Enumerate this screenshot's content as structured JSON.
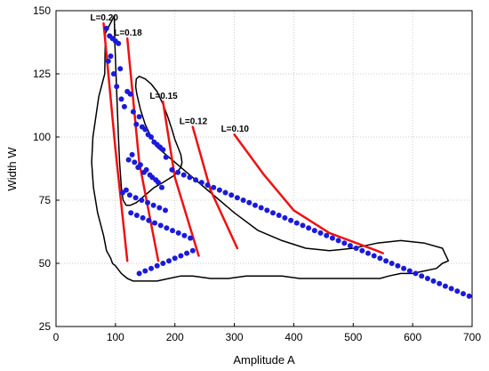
{
  "chart_data": {
    "type": "scatter",
    "title": "",
    "xlabel": "Amplitude A",
    "ylabel": "Width W",
    "xlim": [
      0,
      700
    ],
    "ylim": [
      25,
      150
    ],
    "xticks": [
      0,
      100,
      200,
      300,
      400,
      500,
      600,
      700
    ],
    "yticks": [
      25,
      50,
      75,
      100,
      125,
      150
    ],
    "grid": true,
    "point_color": "#1a1adb",
    "curve_color": "#ee1111",
    "outline_color": "#000000",
    "points": {
      "x": [
        85,
        90,
        95,
        100,
        105,
        108,
        88,
        92,
        97,
        102,
        110,
        115,
        120,
        125,
        130,
        135,
        140,
        145,
        150,
        155,
        160,
        165,
        170,
        175,
        180,
        185,
        122,
        128,
        132,
        138,
        142,
        148,
        152,
        158,
        162,
        168,
        172,
        178,
        118,
        112,
        124,
        134,
        144,
        154,
        164,
        174,
        184,
        126,
        136,
        146,
        156,
        166,
        176,
        186,
        196,
        206,
        216,
        226,
        195,
        205,
        215,
        225,
        235,
        245,
        255,
        265,
        275,
        285,
        295,
        305,
        315,
        325,
        335,
        345,
        355,
        365,
        375,
        385,
        395,
        405,
        415,
        425,
        435,
        445,
        455,
        465,
        475,
        485,
        495,
        505,
        515,
        525,
        535,
        545,
        555,
        565,
        575,
        585,
        595,
        605,
        615,
        625,
        635,
        645,
        655,
        665,
        675,
        685,
        695,
        140,
        150,
        160,
        170,
        180,
        190,
        200,
        210,
        220,
        230
      ],
      "y": [
        143,
        140,
        139,
        138,
        137,
        127,
        130,
        132,
        125,
        120,
        115,
        112,
        118,
        117,
        110,
        105,
        108,
        104,
        103,
        101,
        100,
        98,
        97,
        96,
        95,
        92,
        91,
        93,
        90,
        88,
        89,
        86,
        87,
        85,
        84,
        83,
        82,
        80,
        79,
        78,
        77,
        76,
        75,
        74,
        73,
        72,
        71,
        70,
        69,
        68,
        67,
        66,
        65,
        64,
        63,
        62,
        61,
        60,
        87,
        86,
        85,
        84,
        83,
        82,
        81,
        80,
        79,
        78,
        77,
        76,
        75,
        74,
        73,
        72,
        71,
        70,
        69,
        68,
        67,
        66,
        65,
        64,
        63,
        62,
        61,
        60,
        59,
        58,
        57,
        56,
        55,
        54,
        53,
        52,
        51,
        50,
        49,
        48,
        47,
        46,
        45,
        44,
        43,
        42,
        41,
        40,
        39,
        38,
        37,
        46,
        47,
        48,
        49,
        50,
        51,
        52,
        53,
        54,
        55
      ]
    },
    "curves": [
      {
        "label": "L=0.20",
        "x": [
          80,
          100,
          120
        ],
        "y": [
          145,
          95,
          51
        ]
      },
      {
        "label": "L=0.18",
        "x": [
          120,
          140,
          172
        ],
        "y": [
          139,
          90,
          51
        ]
      },
      {
        "label": "L=0.15",
        "x": [
          180,
          200,
          240
        ],
        "y": [
          114,
          84,
          53
        ]
      },
      {
        "label": "L=0.12",
        "x": [
          230,
          260,
          305
        ],
        "y": [
          104,
          79,
          56
        ]
      },
      {
        "label": "L=0.10",
        "x": [
          300,
          350,
          400,
          460,
          540,
          550
        ],
        "y": [
          101,
          85,
          71,
          62,
          55,
          54
        ]
      }
    ],
    "envelope": {
      "x": [
        98,
        83,
        82,
        72,
        62,
        60,
        63,
        70,
        80,
        85,
        92,
        95,
        100,
        110,
        120,
        130,
        150,
        170,
        190,
        210,
        230,
        260,
        290,
        320,
        350,
        380,
        410,
        440,
        470,
        500,
        520,
        545,
        560,
        580,
        600,
        620,
        640,
        650,
        660,
        650,
        620,
        580,
        540,
        500,
        460,
        420,
        380,
        340,
        300,
        260,
        220,
        190,
        170,
        160,
        150,
        142,
        136,
        134,
        135,
        140,
        150,
        160,
        170,
        180,
        188,
        195,
        200,
        205,
        210,
        212,
        210,
        200,
        180,
        165,
        155,
        145,
        135,
        125,
        118,
        113,
        110,
        107,
        105,
        103,
        101,
        99,
        98
      ],
      "y": [
        148,
        141,
        125,
        116,
        100,
        90,
        80,
        70,
        61,
        55,
        52,
        50,
        49,
        46,
        44,
        43,
        43,
        43,
        44,
        45,
        45,
        44,
        44,
        45,
        45,
        45,
        44,
        44,
        44,
        44,
        44,
        44,
        45,
        46,
        46,
        47,
        48,
        50,
        51,
        56,
        58,
        59,
        58,
        56,
        55,
        56,
        59,
        63,
        70,
        78,
        86,
        92,
        96,
        100,
        105,
        111,
        117,
        120,
        123,
        124,
        123,
        121,
        118,
        113,
        108,
        103,
        99,
        96,
        93,
        90,
        88,
        85,
        82,
        80,
        78,
        76,
        74,
        73,
        73,
        75,
        80,
        90,
        100,
        112,
        125,
        137,
        148
      ]
    }
  }
}
